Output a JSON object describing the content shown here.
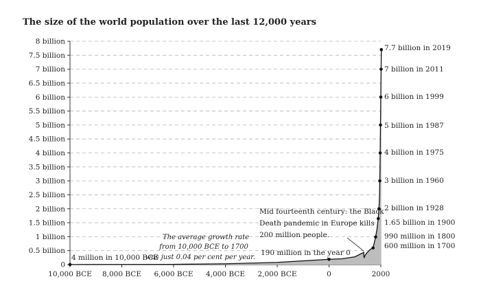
{
  "chart_data": {
    "type": "area",
    "title": "The size of the world population over the last 12,000 years",
    "xlim": [
      -10000,
      2000
    ],
    "ylim": [
      0,
      8
    ],
    "y_unit": "billion",
    "grid": "horizontal dashed",
    "x_ticks": [
      {
        "value": -10000,
        "label": "10,000 BCE"
      },
      {
        "value": -8000,
        "label": "8,000 BCE"
      },
      {
        "value": -6000,
        "label": "6,000 BCE"
      },
      {
        "value": -4000,
        "label": "4,000 BCE"
      },
      {
        "value": -2000,
        "label": "2,000 BCE"
      },
      {
        "value": 0,
        "label": "0"
      },
      {
        "value": 2000,
        "label": "2000"
      }
    ],
    "y_ticks": [
      {
        "value": 0,
        "label": "0"
      },
      {
        "value": 0.5,
        "label": "0.5 billion"
      },
      {
        "value": 1,
        "label": "1 billion"
      },
      {
        "value": 1.5,
        "label": "1.5 billion"
      },
      {
        "value": 2,
        "label": "2 billion"
      },
      {
        "value": 2.5,
        "label": "2.5 billion"
      },
      {
        "value": 3,
        "label": "3 billion"
      },
      {
        "value": 3.5,
        "label": "3.5 billion"
      },
      {
        "value": 4,
        "label": "4 billion"
      },
      {
        "value": 4.5,
        "label": "4.5 billion"
      },
      {
        "value": 5,
        "label": "5 billion"
      },
      {
        "value": 5.5,
        "label": "5.5 billion"
      },
      {
        "value": 6,
        "label": "6 billion"
      },
      {
        "value": 6.5,
        "label": "6.5 billion"
      },
      {
        "value": 7,
        "label": "7 billion"
      },
      {
        "value": 7.5,
        "label": "7.5 billion"
      },
      {
        "value": 8,
        "label": "8 billion"
      }
    ],
    "series": [
      {
        "x": [
          -10000,
          -8000,
          -6000,
          -4000,
          -2000,
          0,
          500,
          1000,
          1340,
          1350,
          1400,
          1500,
          1600,
          1700,
          1800,
          1850,
          1900,
          1928,
          1950,
          1960,
          1975,
          1987,
          1999,
          2011,
          2019
        ],
        "y": [
          0.004,
          0.006,
          0.01,
          0.03,
          0.08,
          0.19,
          0.21,
          0.28,
          0.44,
          0.24,
          0.35,
          0.46,
          0.55,
          0.6,
          0.99,
          1.26,
          1.65,
          2.0,
          2.5,
          3.0,
          4.0,
          5.0,
          6.0,
          7.0,
          7.7
        ]
      }
    ],
    "labeled_points": [
      {
        "x": 2019,
        "y": 7.7,
        "label": "7.7 billion in 2019"
      },
      {
        "x": 2011,
        "y": 7.0,
        "label": "7 billion in 2011"
      },
      {
        "x": 1999,
        "y": 6.0,
        "label": "6 billion in 1999"
      },
      {
        "x": 1987,
        "y": 5.0,
        "label": "5 billion in 1987"
      },
      {
        "x": 1975,
        "y": 4.0,
        "label": "4 billion in 1975"
      },
      {
        "x": 1960,
        "y": 3.0,
        "label": "3 billion in 1960"
      },
      {
        "x": 1928,
        "y": 2.0,
        "label": "2 billion in 1928"
      },
      {
        "x": 1900,
        "y": 1.65,
        "label": "1.65 billion in 1900"
      },
      {
        "x": 1800,
        "y": 0.99,
        "label": "990 million in 1800"
      },
      {
        "x": 1700,
        "y": 0.6,
        "label": "600 million in 1700"
      },
      {
        "x": 0,
        "y": 0.19,
        "label": "190 million in the year 0"
      },
      {
        "x": -10000,
        "y": 0.004,
        "label": "4 million in 10,000 BCE"
      }
    ],
    "annotations": {
      "black_death": [
        "Mid fourteenth century: the Black",
        "Death pandemic in Europe kills",
        "200 million people."
      ],
      "growth_rate": [
        "The average growth rate",
        "from 10,000 BCE to 1700",
        "was just 0.04 per cent per year."
      ]
    }
  }
}
